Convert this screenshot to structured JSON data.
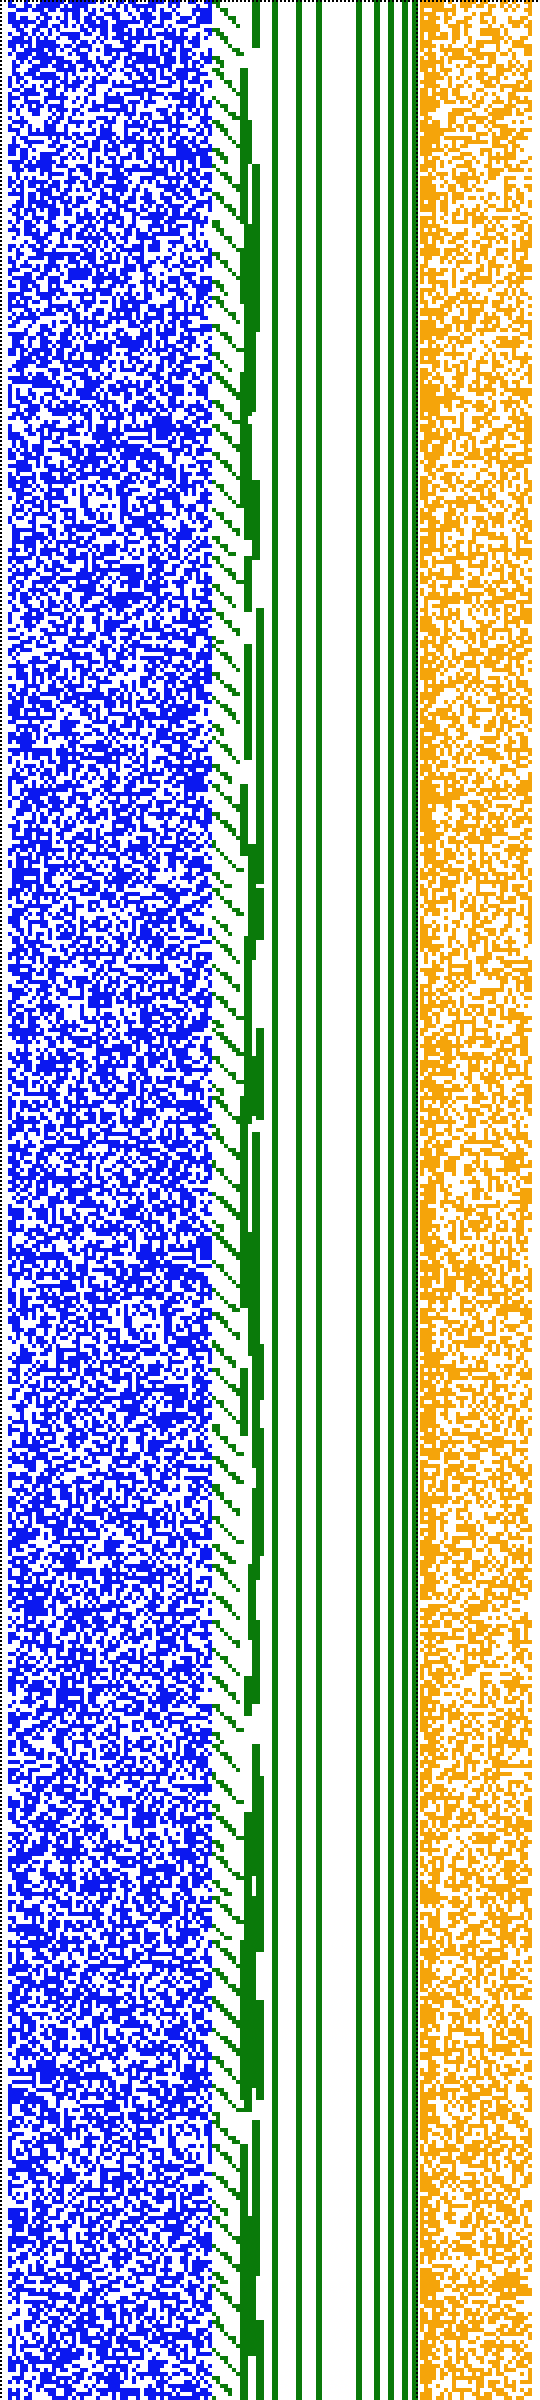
{
  "colors": {
    "background": "#ffffff",
    "left_block": "#0b18f0",
    "staircase": "#0a7a0a",
    "green_bars": "#0a7a0a",
    "right_block": "#f5a40a",
    "dotted_border": "#000000"
  },
  "regions": {
    "left_block": {
      "description_icon": "blue-noise-block-icon",
      "density": 0.55
    },
    "staircase": {
      "description_icon": "green-staircase-icon"
    },
    "green_bars": {
      "count": 8,
      "description_icon": "green-vertical-bars-icon"
    },
    "right_block": {
      "description_icon": "orange-noise-block-icon",
      "density": 0.5
    }
  }
}
